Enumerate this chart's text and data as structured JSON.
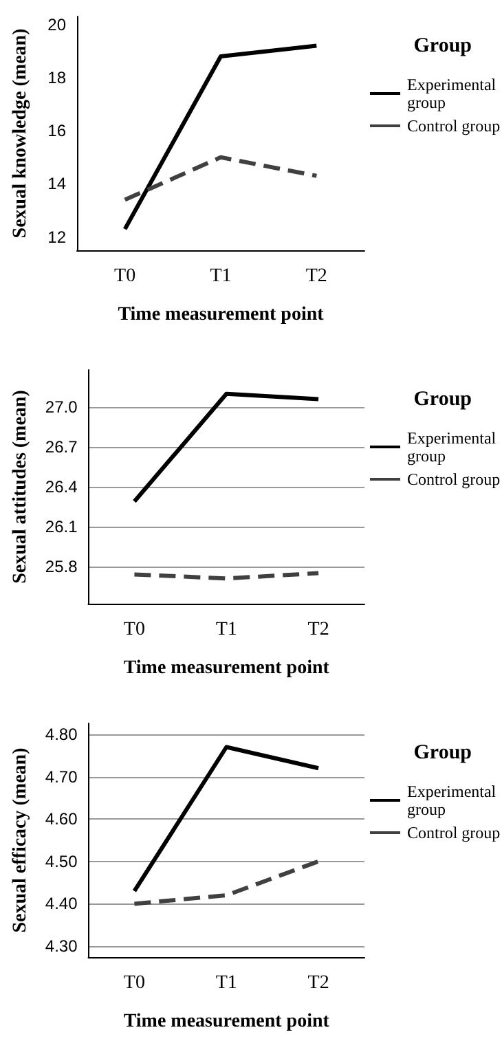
{
  "chart_data": [
    {
      "type": "line",
      "xlabel": "Time measurement point",
      "ylabel": "Sexual knowledge (mean)",
      "legend_title": "Group",
      "categories": [
        "T0",
        "T1",
        "T2"
      ],
      "series": [
        {
          "name": "Experimental group",
          "color": "#000000",
          "line_style": "solid",
          "values": [
            12.3,
            18.8,
            19.2
          ]
        },
        {
          "name": "Control group",
          "color": "#404040",
          "line_style": "dashed",
          "values": [
            13.4,
            15.0,
            14.3
          ]
        }
      ],
      "ylim": [
        11.5,
        20.3
      ],
      "yticks": [
        12,
        14,
        16,
        18,
        20
      ],
      "legend": "right",
      "marker": "none"
    },
    {
      "type": "line",
      "xlabel": "Time measurement point",
      "ylabel": "Sexual attitudes (mean)",
      "legend_title": "Group",
      "categories": [
        "T0",
        "T1",
        "T2"
      ],
      "series": [
        {
          "name": "Experimental group",
          "color": "#000000",
          "line_style": "solid",
          "values": [
            26.29,
            27.1,
            27.06
          ]
        },
        {
          "name": "Control group",
          "color": "#404040",
          "line_style": "dashed",
          "values": [
            25.74,
            25.71,
            25.75
          ]
        }
      ],
      "ylim": [
        25.52,
        27.28
      ],
      "yticks": [
        {
          "value": 25.8,
          "label": "25.8"
        },
        {
          "value": 26.1,
          "label": "26.1"
        },
        {
          "value": 26.4,
          "label": "26.4"
        },
        {
          "value": 26.7,
          "label": "26.7"
        },
        {
          "value": 27,
          "label": "27.0"
        }
      ],
      "grid": "y",
      "legend": "right",
      "marker": "none"
    },
    {
      "type": "line",
      "xlabel": "Time measurement point",
      "ylabel": "Sexual efficacy (mean)",
      "legend_title": "Group",
      "categories": [
        "T0",
        "T1",
        "T2"
      ],
      "series": [
        {
          "name": "Experimental group",
          "color": "#000000",
          "line_style": "solid",
          "values": [
            4.43,
            4.77,
            4.72
          ]
        },
        {
          "name": "Control group",
          "color": "#404040",
          "line_style": "dashed",
          "values": [
            4.4,
            4.42,
            4.5
          ]
        }
      ],
      "ylim": [
        4.274,
        4.826
      ],
      "yticks": [
        {
          "value": 4.3,
          "label": "4.30"
        },
        {
          "value": 4.4,
          "label": "4.40"
        },
        {
          "value": 4.5,
          "label": "4.50"
        },
        {
          "value": 4.6,
          "label": "4.60"
        },
        {
          "value": 4.7,
          "label": "4.70"
        },
        {
          "value": 4.8,
          "label": "4.80"
        }
      ],
      "grid": "y",
      "legend": "right",
      "marker": "none"
    }
  ]
}
